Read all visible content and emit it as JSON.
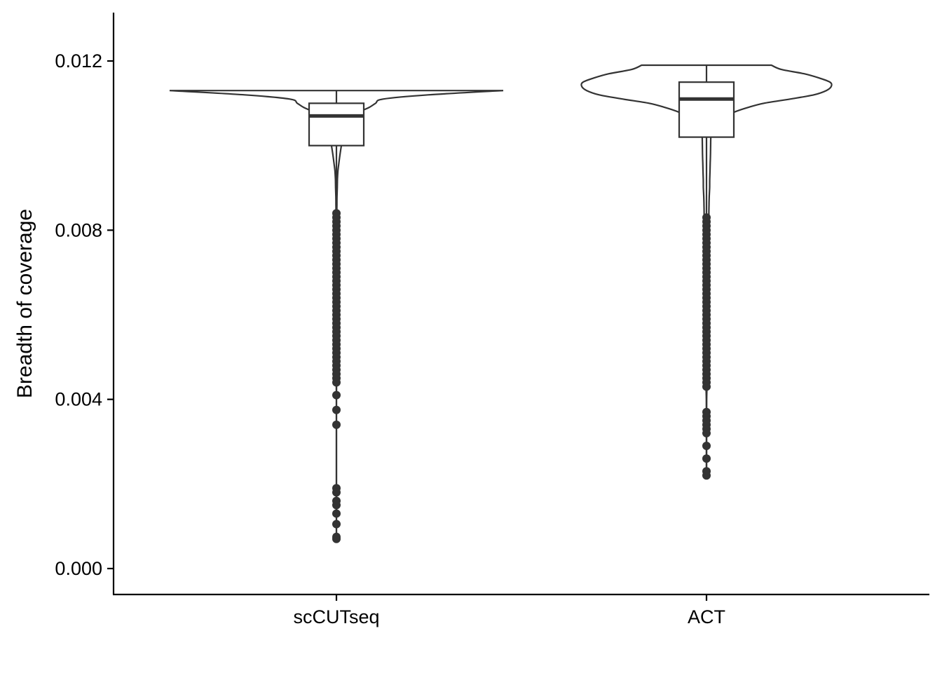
{
  "chart_data": {
    "type": "violin",
    "title": "",
    "xlabel": "",
    "ylabel": "Breadth of coverage",
    "ylim": [
      -0.0006,
      0.0131
    ],
    "yticks": [
      {
        "value": 0.0,
        "label": "0.000"
      },
      {
        "value": 0.004,
        "label": "0.004"
      },
      {
        "value": 0.008,
        "label": "0.008"
      },
      {
        "value": 0.012,
        "label": "0.012"
      }
    ],
    "categories": [
      "scCUTseq",
      "ACT"
    ],
    "grid": false,
    "legend": "none",
    "colors": {
      "outline": "#333333",
      "axis": "#000000",
      "fill": "#ffffff"
    },
    "groups": [
      {
        "category": "scCUTseq",
        "box": {
          "lower_whisker": 0.0,
          "q1": 0.01,
          "median": 0.0107,
          "q3": 0.011,
          "upper_whisker": 0.0113
        },
        "violin_ymin": 0.0007,
        "violin_ymax": 0.0113,
        "violin_profile": [
          [
            0.0113,
            1.0
          ],
          [
            0.0112,
            0.55
          ],
          [
            0.0111,
            0.28
          ],
          [
            0.011,
            0.235
          ],
          [
            0.0109,
            0.195
          ],
          [
            0.0108,
            0.14
          ],
          [
            0.0107,
            0.11
          ],
          [
            0.0106,
            0.085
          ],
          [
            0.0105,
            0.072
          ],
          [
            0.0104,
            0.062
          ],
          [
            0.0103,
            0.053
          ],
          [
            0.0102,
            0.045
          ],
          [
            0.0101,
            0.038
          ],
          [
            0.01,
            0.03
          ],
          [
            0.0098,
            0.022
          ],
          [
            0.0096,
            0.015
          ],
          [
            0.0094,
            0.009
          ],
          [
            0.0092,
            0.006
          ],
          [
            0.009,
            0.005
          ],
          [
            0.0088,
            0.0035
          ],
          [
            0.0086,
            0.0028
          ],
          [
            0.0084,
            0.0025
          ],
          [
            0.0082,
            0.002
          ],
          [
            0.008,
            0.0017
          ],
          [
            0.0078,
            0.0015
          ],
          [
            0.0076,
            0.0022
          ],
          [
            0.0074,
            0.0024
          ],
          [
            0.0072,
            0.0026
          ],
          [
            0.007,
            0.0024
          ],
          [
            0.0068,
            0.0018
          ],
          [
            0.0066,
            0.0014
          ],
          [
            0.0064,
            0.0015
          ],
          [
            0.0062,
            0.0018
          ],
          [
            0.006,
            0.0016
          ],
          [
            0.0058,
            0.0012
          ],
          [
            0.0056,
            0.0016
          ],
          [
            0.0054,
            0.0021
          ],
          [
            0.0052,
            0.0022
          ],
          [
            0.005,
            0.0015
          ],
          [
            0.0048,
            0.0008
          ],
          [
            0.0046,
            0.0005
          ],
          [
            0.0044,
            0.0003
          ],
          [
            0.004,
            0.0002
          ],
          [
            0.0035,
            0.0001
          ],
          [
            0.003,
            0.0001
          ],
          [
            0.002,
            0.0001
          ],
          [
            0.001,
            0.0001
          ],
          [
            0.0007,
            0.0
          ]
        ],
        "outliers": [
          0.0084,
          0.0083,
          0.0082,
          0.0081,
          0.008,
          0.0079,
          0.0078,
          0.0077,
          0.0076,
          0.0075,
          0.0074,
          0.0073,
          0.0072,
          0.0071,
          0.007,
          0.0069,
          0.0068,
          0.0067,
          0.0066,
          0.0065,
          0.0064,
          0.0063,
          0.0062,
          0.0061,
          0.006,
          0.0059,
          0.0058,
          0.0057,
          0.0056,
          0.0055,
          0.0054,
          0.0053,
          0.0052,
          0.0051,
          0.005,
          0.0049,
          0.0048,
          0.0047,
          0.0046,
          0.0045,
          0.0044,
          0.0041,
          0.00375,
          0.0034,
          0.0019,
          0.0018,
          0.0016,
          0.0015,
          0.0013,
          0.00105,
          0.00075,
          0.0007
        ]
      },
      {
        "category": "ACT",
        "box": {
          "lower_whisker": 0.0,
          "q1": 0.0102,
          "median": 0.0111,
          "q3": 0.0115,
          "upper_whisker": 0.0119
        },
        "violin_ymin": 0.0022,
        "violin_ymax": 0.0119,
        "violin_profile": [
          [
            0.0119,
            0.52
          ],
          [
            0.0118,
            0.6
          ],
          [
            0.0117,
            0.78
          ],
          [
            0.0116,
            0.9
          ],
          [
            0.0115,
            0.99
          ],
          [
            0.0114,
            1.0
          ],
          [
            0.0113,
            0.96
          ],
          [
            0.0112,
            0.86
          ],
          [
            0.0111,
            0.67
          ],
          [
            0.011,
            0.46
          ],
          [
            0.0109,
            0.33
          ],
          [
            0.0108,
            0.23
          ],
          [
            0.0107,
            0.17
          ],
          [
            0.0106,
            0.12
          ],
          [
            0.0105,
            0.085
          ],
          [
            0.0104,
            0.06
          ],
          [
            0.0103,
            0.045
          ],
          [
            0.0102,
            0.035
          ],
          [
            0.01,
            0.033
          ],
          [
            0.0098,
            0.032
          ],
          [
            0.0096,
            0.03
          ],
          [
            0.0094,
            0.028
          ],
          [
            0.0092,
            0.026
          ],
          [
            0.009,
            0.025
          ],
          [
            0.0088,
            0.022
          ],
          [
            0.0086,
            0.02
          ],
          [
            0.0084,
            0.019
          ],
          [
            0.0082,
            0.018
          ],
          [
            0.008,
            0.016
          ],
          [
            0.0078,
            0.014
          ],
          [
            0.0076,
            0.015
          ],
          [
            0.0074,
            0.011
          ],
          [
            0.0072,
            0.013
          ],
          [
            0.007,
            0.012
          ],
          [
            0.0068,
            0.015
          ],
          [
            0.0066,
            0.013
          ],
          [
            0.0064,
            0.011
          ],
          [
            0.0062,
            0.014
          ],
          [
            0.006,
            0.012
          ],
          [
            0.0058,
            0.011
          ],
          [
            0.0056,
            0.013
          ],
          [
            0.0054,
            0.011
          ],
          [
            0.0052,
            0.014
          ],
          [
            0.005,
            0.015
          ],
          [
            0.0048,
            0.013
          ],
          [
            0.0046,
            0.01
          ],
          [
            0.0044,
            0.006
          ],
          [
            0.0042,
            0.003
          ],
          [
            0.004,
            0.001
          ],
          [
            0.0035,
            0.0005
          ],
          [
            0.003,
            0.0004
          ],
          [
            0.0025,
            0.0003
          ],
          [
            0.0022,
            0.0
          ]
        ],
        "outliers": [
          0.0083,
          0.0082,
          0.0081,
          0.008,
          0.0079,
          0.0078,
          0.0077,
          0.0076,
          0.0075,
          0.0074,
          0.0073,
          0.0072,
          0.0071,
          0.007,
          0.0069,
          0.0068,
          0.0067,
          0.0066,
          0.0065,
          0.0064,
          0.0063,
          0.0062,
          0.0061,
          0.006,
          0.0059,
          0.0058,
          0.0057,
          0.0056,
          0.0055,
          0.0054,
          0.0053,
          0.0052,
          0.0051,
          0.005,
          0.0049,
          0.0048,
          0.0047,
          0.0046,
          0.0045,
          0.0044,
          0.0043,
          0.0037,
          0.0036,
          0.0035,
          0.0034,
          0.0033,
          0.0032,
          0.0029,
          0.0026,
          0.0023,
          0.0022
        ]
      }
    ]
  }
}
